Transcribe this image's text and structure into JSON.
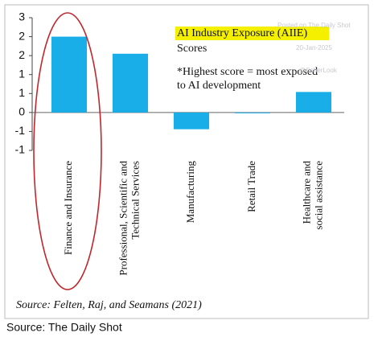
{
  "chart_data": {
    "type": "bar",
    "title": "AI Industry Exposure (AIIE)",
    "subtitle": "Scores",
    "annotations": [
      "*Highest score = most exposed",
      "to AI development"
    ],
    "watermark": [
      "Posted on The Daily Shot",
      "20-Jan-2025",
      "@SoberLook"
    ],
    "categories": [
      "Finance and Insurance",
      "Professional, Scientific and Technical Services",
      "Manufacturing",
      "Retail Trade",
      "Healthcare and social assistance"
    ],
    "values": [
      2.4,
      1.86,
      -0.53,
      -0.02,
      0.65
    ],
    "color": "#1aaee8",
    "ylim": [
      -1.2,
      3
    ],
    "yticks": [
      3,
      {
        "value": 2.4,
        "label": "2"
      },
      {
        "value": 1.8,
        "label": "2"
      },
      {
        "value": 1.2,
        "label": "1"
      },
      {
        "value": 0.6,
        "label": "1"
      },
      0,
      {
        "value": -0.6,
        "label": "-1"
      },
      {
        "value": -1.2,
        "label": "-1"
      }
    ],
    "grid": false,
    "highlight_color": "#c0272d",
    "source": "Source: Felten, Raj, and Seamans (2021)",
    "footer": "Source: The Daily Shot"
  }
}
